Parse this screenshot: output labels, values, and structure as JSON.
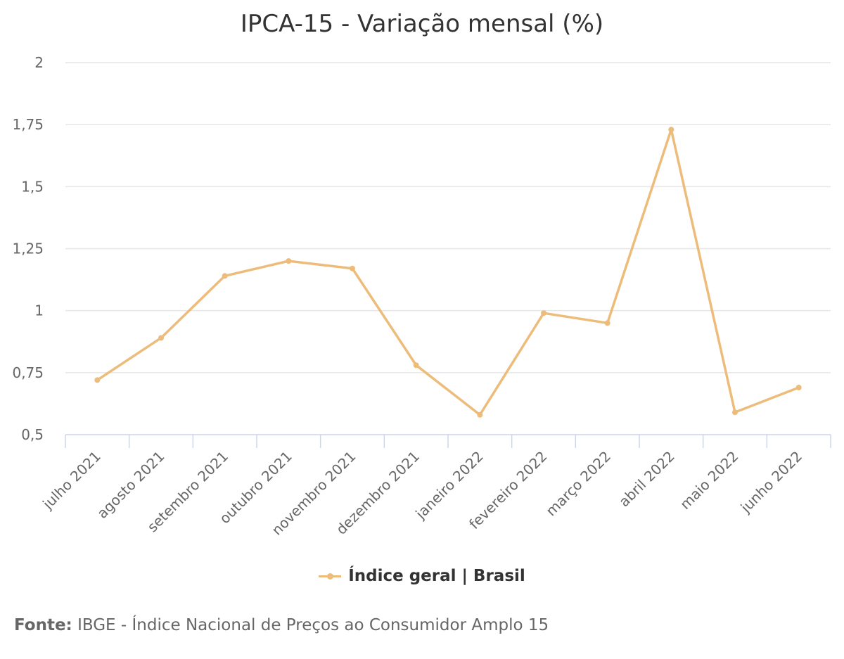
{
  "chart_data": {
    "type": "line",
    "title": "IPCA-15 - Variação mensal (%)",
    "categories": [
      "julho 2021",
      "agosto 2021",
      "setembro 2021",
      "outubro 2021",
      "novembro 2021",
      "dezembro 2021",
      "janeiro 2022",
      "fevereiro 2022",
      "março 2022",
      "abril 2022",
      "maio 2022",
      "junho 2022"
    ],
    "series": [
      {
        "name": "Índice geral | Brasil",
        "color": "#EDBC7A",
        "values": [
          0.72,
          0.89,
          1.14,
          1.2,
          1.17,
          0.78,
          0.58,
          0.99,
          0.95,
          1.73,
          0.59,
          0.69
        ]
      }
    ],
    "ylim": [
      0.5,
      2
    ],
    "yticks": [
      0.5,
      0.75,
      1,
      1.25,
      1.5,
      1.75,
      2
    ],
    "ytick_labels": [
      "0,5",
      "0,75",
      "1",
      "1,25",
      "1,5",
      "1,75",
      "2"
    ],
    "grid": true,
    "legend_position": "bottom-center",
    "source_label": "Fonte:",
    "source_text": "IBGE - Índice Nacional de Preços ao Consumidor Amplo 15"
  }
}
